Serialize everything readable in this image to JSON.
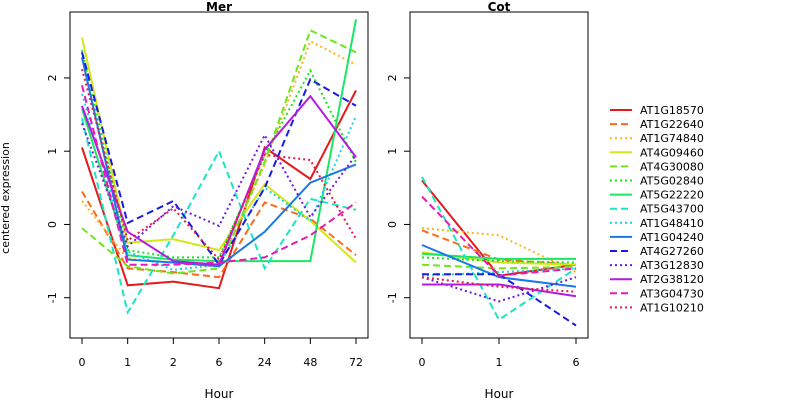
{
  "chart_data": [
    {
      "type": "line",
      "title": "Mer",
      "xlabel": "Hour",
      "ylabel": "centered expression",
      "categories": [
        "0",
        "1",
        "2",
        "6",
        "24",
        "48",
        "72"
      ],
      "ylim": [
        -1.55,
        2.9
      ],
      "yticks": [
        -1,
        0,
        1,
        2
      ],
      "series": [
        {
          "name": "AT1G18570",
          "values": [
            1.05,
            -0.83,
            -0.78,
            -0.87,
            1.05,
            0.62,
            1.83
          ]
        },
        {
          "name": "AT1G22640",
          "values": [
            0.45,
            -0.6,
            -0.65,
            -0.72,
            0.3,
            0.08,
            -0.42
          ]
        },
        {
          "name": "AT1G74840",
          "values": [
            0.32,
            -0.47,
            -0.52,
            -0.58,
            0.82,
            2.5,
            2.18
          ]
        },
        {
          "name": "AT4G09460",
          "values": [
            2.55,
            -0.25,
            -0.2,
            -0.35,
            0.55,
            0.05,
            -0.52
          ]
        },
        {
          "name": "AT4G30080",
          "values": [
            -0.05,
            -0.57,
            -0.67,
            -0.6,
            0.85,
            2.65,
            2.35
          ]
        },
        {
          "name": "AT5G02840",
          "values": [
            2.38,
            -0.35,
            -0.45,
            -0.45,
            0.95,
            2.1,
            0.85
          ]
        },
        {
          "name": "AT5G22220",
          "values": [
            1.58,
            -0.42,
            -0.48,
            -0.5,
            -0.5,
            -0.5,
            2.8
          ]
        },
        {
          "name": "AT5G43700",
          "values": [
            1.45,
            -1.2,
            -0.15,
            1.0,
            -0.6,
            0.35,
            0.2
          ]
        },
        {
          "name": "AT1G48410",
          "values": [
            1.78,
            -0.37,
            -0.62,
            -0.55,
            0.5,
            0.05,
            1.48
          ]
        },
        {
          "name": "AT1G04240",
          "values": [
            2.28,
            -0.48,
            -0.52,
            -0.57,
            -0.1,
            0.57,
            0.82
          ]
        },
        {
          "name": "AT4G27260",
          "values": [
            2.35,
            0.02,
            0.32,
            -0.55,
            0.5,
            1.98,
            1.62
          ]
        },
        {
          "name": "AT3G12830",
          "values": [
            1.38,
            -0.3,
            0.25,
            -0.02,
            1.22,
            0.1,
            0.95
          ]
        },
        {
          "name": "AT2G38120",
          "values": [
            1.62,
            -0.1,
            -0.5,
            -0.55,
            1.02,
            1.75,
            0.92
          ]
        },
        {
          "name": "AT3G04730",
          "values": [
            1.9,
            -0.55,
            -0.55,
            -0.52,
            -0.45,
            -0.15,
            0.3
          ]
        },
        {
          "name": "AT1G10210",
          "values": [
            2.12,
            -0.22,
            0.22,
            -0.48,
            0.95,
            0.88,
            -0.2
          ]
        }
      ]
    },
    {
      "type": "line",
      "title": "Cot",
      "xlabel": "Hour",
      "ylabel": "",
      "categories": [
        "0",
        "1",
        "6"
      ],
      "ylim": [
        -1.55,
        2.9
      ],
      "yticks": [
        -1,
        0,
        1,
        2
      ],
      "series": [
        {
          "name": "AT1G18570",
          "values": [
            0.6,
            -0.7,
            -0.55
          ]
        },
        {
          "name": "AT1G22640",
          "values": [
            -0.08,
            -0.48,
            -0.55
          ]
        },
        {
          "name": "AT1G74840",
          "values": [
            -0.05,
            -0.15,
            -0.65
          ]
        },
        {
          "name": "AT4G09460",
          "values": [
            -0.38,
            -0.52,
            -0.55
          ]
        },
        {
          "name": "AT4G30080",
          "values": [
            -0.55,
            -0.6,
            -0.58
          ]
        },
        {
          "name": "AT5G02840",
          "values": [
            -0.45,
            -0.5,
            -0.52
          ]
        },
        {
          "name": "AT5G22220",
          "values": [
            -0.4,
            -0.47,
            -0.47
          ]
        },
        {
          "name": "AT5G43700",
          "values": [
            0.65,
            -1.3,
            -0.6
          ]
        },
        {
          "name": "AT1G48410",
          "values": [
            -0.7,
            -0.65,
            -0.6
          ]
        },
        {
          "name": "AT1G04240",
          "values": [
            -0.28,
            -0.72,
            -0.85
          ]
        },
        {
          "name": "AT4G27260",
          "values": [
            -0.68,
            -0.68,
            -1.38
          ]
        },
        {
          "name": "AT3G12830",
          "values": [
            -0.72,
            -1.05,
            -0.72
          ]
        },
        {
          "name": "AT2G38120",
          "values": [
            -0.82,
            -0.82,
            -0.98
          ]
        },
        {
          "name": "AT3G04730",
          "values": [
            0.38,
            -0.7,
            -0.6
          ]
        },
        {
          "name": "AT1G10210",
          "values": [
            -0.72,
            -0.85,
            -0.92
          ]
        }
      ]
    }
  ],
  "legend": {
    "placement": "right",
    "items": [
      {
        "name": "AT1G18570",
        "color": "#e41a1c",
        "dash": "solid"
      },
      {
        "name": "AT1G22640",
        "color": "#ff6a1a",
        "dash": "dashed"
      },
      {
        "name": "AT1G74840",
        "color": "#ffb41a",
        "dash": "dotted"
      },
      {
        "name": "AT4G09460",
        "color": "#d4e61a",
        "dash": "solid"
      },
      {
        "name": "AT4G30080",
        "color": "#6ee61a",
        "dash": "dashed"
      },
      {
        "name": "AT5G02840",
        "color": "#1ae61a",
        "dash": "dotted"
      },
      {
        "name": "AT5G22220",
        "color": "#1ae666",
        "dash": "solid"
      },
      {
        "name": "AT5G43700",
        "color": "#1ae6c4",
        "dash": "dashed"
      },
      {
        "name": "AT1G48410",
        "color": "#1ad2e6",
        "dash": "dotted"
      },
      {
        "name": "AT1G04240",
        "color": "#1a78e6",
        "dash": "solid"
      },
      {
        "name": "AT4G27260",
        "color": "#1a1ae6",
        "dash": "dashed"
      },
      {
        "name": "AT3G12830",
        "color": "#701ae6",
        "dash": "dotted"
      },
      {
        "name": "AT2G38120",
        "color": "#b41ae6",
        "dash": "solid"
      },
      {
        "name": "AT3G04730",
        "color": "#e61ab4",
        "dash": "dashed"
      },
      {
        "name": "AT1G10210",
        "color": "#e61a4a",
        "dash": "dotted"
      }
    ]
  }
}
